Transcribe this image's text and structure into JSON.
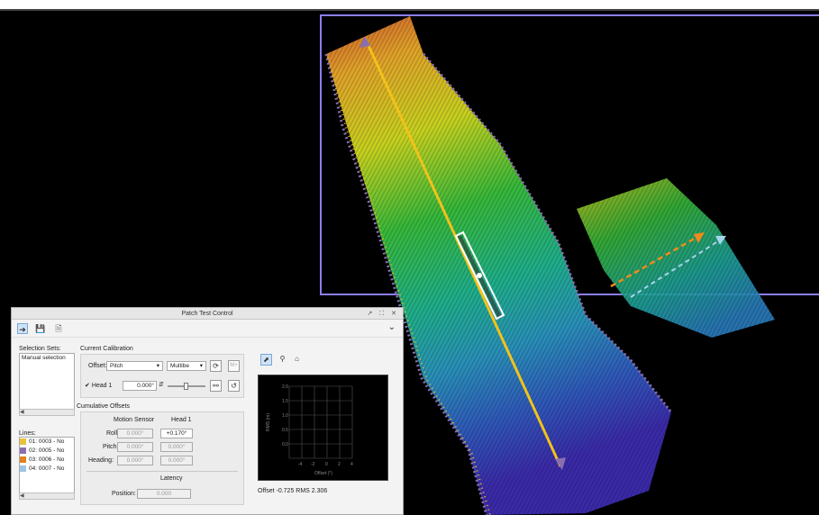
{
  "viewer": {
    "colors": {
      "frame": "#8b7ff0",
      "trackline": "#f2c21b",
      "orange_arrow": "#f08a1b",
      "blue_arrow": "#a7d4ee",
      "background": "#000000"
    }
  },
  "panel": {
    "title": "Patch Test Control",
    "window_buttons": "↗ ⛶ ✕",
    "toolbar": {
      "icons": [
        "run-icon",
        "save-icon",
        "export-icon"
      ],
      "expand_glyph": "⌄"
    },
    "selection_sets": {
      "label": "Selection Sets:",
      "items": [
        "Manual selection"
      ]
    },
    "lines": {
      "label": "Lines:",
      "items": [
        {
          "label": "01: 0003 - No",
          "color": "#e8c23a"
        },
        {
          "label": "02: 0005 - No",
          "color": "#8a6fb0"
        },
        {
          "label": "03: 0006 - No",
          "color": "#e0821e"
        },
        {
          "label": "04: 0007 - No",
          "color": "#9cc4e4"
        }
      ]
    },
    "current_calibration": {
      "label": "Current Calibration",
      "offset_label": "Offset:",
      "offset_value": "Pitch",
      "mode_value": "Multibe",
      "head_label": "Head 1",
      "head_checked": true,
      "head_value": "0.000°",
      "mp_button": "M+"
    },
    "cumulative_offsets": {
      "label": "Cumulative Offsets",
      "col_motion": "Motion Sensor",
      "col_head": "Head 1",
      "rows": [
        {
          "label": "Roll:",
          "motion": "0.000°",
          "head": "+0.170°"
        },
        {
          "label": "Pitch:",
          "motion": "0.000°",
          "head": "0.000°"
        },
        {
          "label": "Heading:",
          "motion": "0.000°",
          "head": "0.000°"
        }
      ],
      "latency_label": "Latency",
      "position_label": "Position:",
      "position_value": "0.000"
    },
    "plot": {
      "tools": [
        "pointer-icon",
        "zoom-icon",
        "home-icon"
      ],
      "ylabel": "RMS (m)",
      "xlabel": "Offset (°)",
      "yticks": [
        "2.0",
        "1.5",
        "1.0",
        "0.5",
        "0.0"
      ],
      "xticks": [
        "-4",
        "-2",
        "0",
        "2",
        "4"
      ],
      "status": "Offset -0.725  RMS 2.306"
    }
  }
}
